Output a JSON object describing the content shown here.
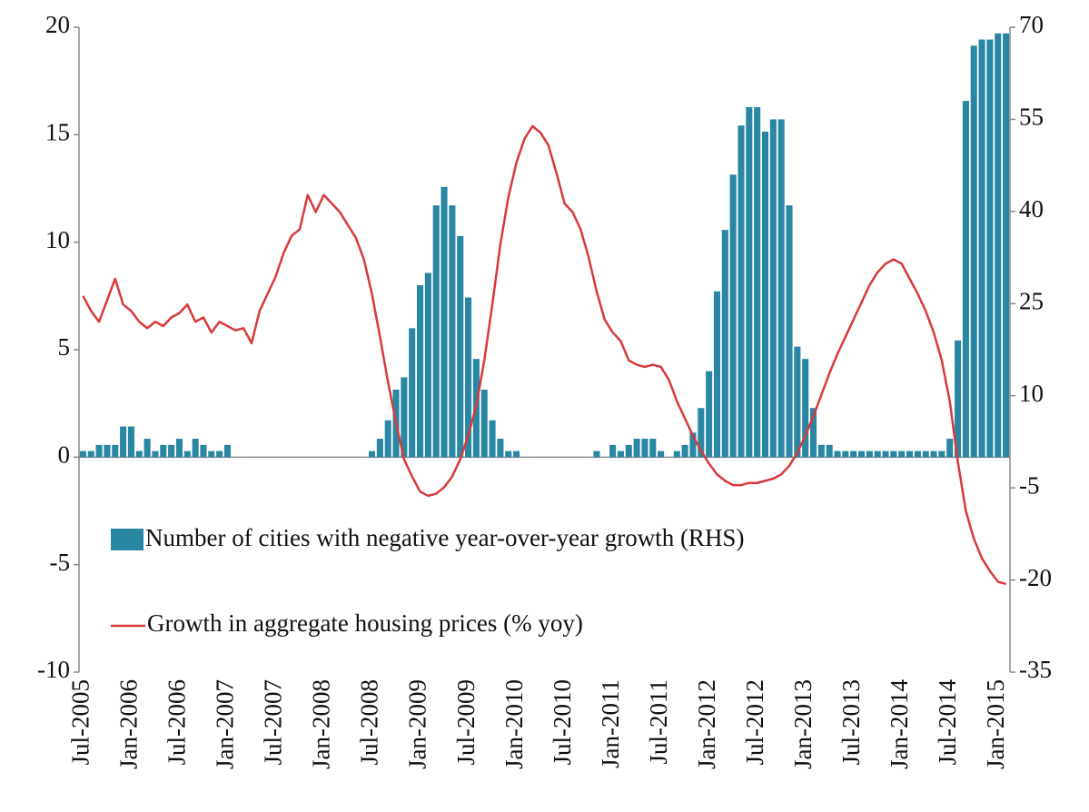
{
  "chart_data": {
    "type": "bar",
    "categories": [
      "Jul-2005",
      null,
      null,
      null,
      null,
      null,
      "Jan-2006",
      null,
      null,
      null,
      null,
      null,
      "Jul-2006",
      null,
      null,
      null,
      null,
      null,
      "Jan-2007",
      null,
      null,
      null,
      null,
      null,
      "Jul-2007",
      null,
      null,
      null,
      null,
      null,
      "Jan-2008",
      null,
      null,
      null,
      null,
      null,
      "Jul-2008",
      null,
      null,
      null,
      null,
      null,
      "Jan-2009",
      null,
      null,
      null,
      null,
      null,
      "Jul-2009",
      null,
      null,
      null,
      null,
      null,
      "Jan-2010",
      null,
      null,
      null,
      null,
      null,
      "Jul-2010",
      null,
      null,
      null,
      null,
      null,
      "Jan-2011",
      null,
      null,
      null,
      null,
      null,
      "Jul-2011",
      null,
      null,
      null,
      null,
      null,
      "Jan-2012",
      null,
      null,
      null,
      null,
      null,
      "Jul-2012",
      null,
      null,
      null,
      null,
      null,
      "Jan-2013",
      null,
      null,
      null,
      null,
      null,
      "Jul-2013",
      null,
      null,
      null,
      null,
      null,
      "Jan-2014",
      null,
      null,
      null,
      null,
      null,
      "Jul-2014",
      null,
      null,
      null,
      null,
      null,
      "Jan-2015",
      null
    ],
    "series": [
      {
        "name": "Number of cities with negative year-over-year growth (RHS)",
        "type": "bar",
        "axis": "y2",
        "color": "#2a87a3",
        "values": [
          1,
          1,
          2,
          2,
          2,
          5,
          5,
          1,
          3,
          1,
          2,
          2,
          3,
          1,
          3,
          2,
          1,
          1,
          2,
          0,
          0,
          0,
          0,
          0,
          0,
          0,
          0,
          0,
          0,
          0,
          0,
          0,
          0,
          0,
          0,
          0,
          1,
          3,
          6,
          11,
          13,
          21,
          28,
          30,
          41,
          44,
          41,
          36,
          26,
          16,
          11,
          6,
          3,
          1,
          1,
          0,
          0,
          0,
          0,
          0,
          0,
          0,
          0,
          0,
          1,
          0,
          2,
          1,
          2,
          3,
          3,
          3,
          1,
          0,
          1,
          2,
          4,
          8,
          14,
          27,
          37,
          46,
          54,
          57,
          57,
          53,
          55,
          55,
          41,
          18,
          16,
          8,
          2,
          2,
          1,
          1,
          1,
          1,
          1,
          1,
          1,
          1,
          1,
          1,
          1,
          1,
          1,
          1,
          3,
          19,
          58,
          67,
          68,
          68,
          69,
          69
        ]
      },
      {
        "name": "Growth in aggregate housing prices (% yoy)",
        "type": "line",
        "axis": "y",
        "color": "#d8393b",
        "values": [
          7.5,
          6.8,
          6.3,
          7.3,
          8.3,
          7.1,
          6.8,
          6.3,
          6.0,
          6.3,
          6.1,
          6.5,
          6.7,
          7.1,
          6.3,
          6.5,
          5.8,
          6.3,
          6.1,
          5.9,
          6.0,
          5.3,
          6.8,
          7.6,
          8.4,
          9.5,
          10.3,
          10.6,
          12.2,
          11.4,
          12.2,
          11.8,
          11.4,
          10.8,
          10.2,
          9.2,
          7.6,
          5.6,
          3.5,
          1.6,
          -0.1,
          -0.9,
          -1.6,
          -1.8,
          -1.7,
          -1.4,
          -0.9,
          -0.1,
          1.0,
          2.4,
          4.5,
          7.1,
          9.9,
          12.1,
          13.7,
          14.8,
          15.4,
          15.1,
          14.5,
          13.2,
          11.8,
          11.4,
          10.6,
          9.3,
          7.7,
          6.4,
          5.8,
          5.4,
          4.5,
          4.3,
          4.2,
          4.3,
          4.2,
          3.6,
          2.6,
          1.8,
          1.0,
          0.3,
          -0.3,
          -0.8,
          -1.1,
          -1.3,
          -1.3,
          -1.2,
          -1.2,
          -1.1,
          -1.0,
          -0.8,
          -0.4,
          0.2,
          1.0,
          1.9,
          2.9,
          3.9,
          4.8,
          5.6,
          6.4,
          7.2,
          8.0,
          8.6,
          9.0,
          9.2,
          9.0,
          8.3,
          7.6,
          6.8,
          5.8,
          4.5,
          2.6,
          -0.2,
          -2.5,
          -3.8,
          -4.7,
          -5.3,
          -5.8,
          -5.9
        ]
      }
    ],
    "ylim": [
      -10,
      20
    ],
    "yticks": [
      -10,
      -5,
      0,
      5,
      10,
      15,
      20
    ],
    "y2lim": [
      -35,
      70
    ],
    "y2ticks": [
      -35,
      -20,
      -5,
      10,
      25,
      40,
      55,
      70
    ],
    "grid": false
  }
}
